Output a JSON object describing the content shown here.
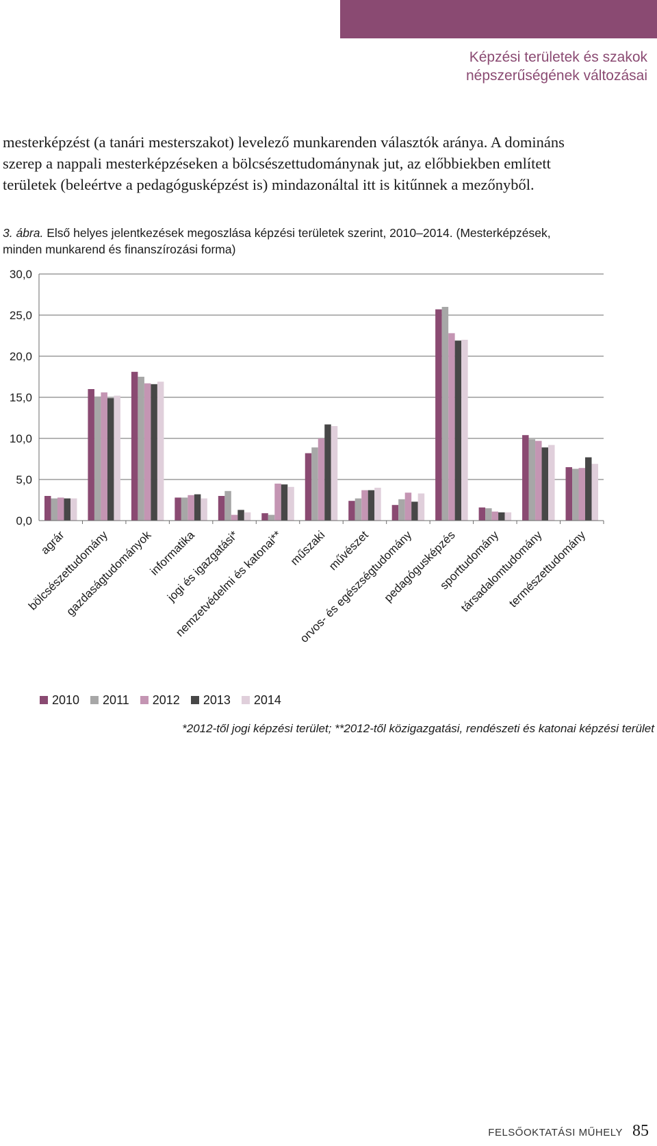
{
  "header": {
    "running_title_line1": "Képzési területek és szakok",
    "running_title_line2": "népszerűségének változásai",
    "bar_color": "#8a4a72"
  },
  "body_text": {
    "lines": [
      "mesterképzést (a tanári mesterszakot) levelező munkarenden választók aránya. A domináns",
      "szerep a nappali mesterképzéseken a bölcsészettudománynak jut, az előbbiekben említett",
      "területek (beleértve a pedagógusképzést is) mindazonáltal itt is kitűnnek a mezőnyből."
    ]
  },
  "figure": {
    "number": "3. ábra.",
    "caption_line1": "Első helyes jelentkezések megoszlása képzési területek szerint, 2010–2014. (Mesterképzések,",
    "caption_line2": "minden munkarend és finanszírozási forma)",
    "footnote": "*2012-től jogi képzési terület; **2012-től közigazgatási, rendészeti és katonai képzési terület"
  },
  "chart_data": {
    "type": "bar",
    "categories": [
      "agrár",
      "bölcsészettudomány",
      "gazdaságtudományok",
      "informatika",
      "jogi és igazgatási*",
      "nemzetvédelmi és katonai**",
      "műszaki",
      "művészet",
      "orvos- és egészségtudomány",
      "pedagógusképzés",
      "sporttudomány",
      "társadalomtudomány",
      "természettudomány"
    ],
    "series": [
      {
        "name": "2010",
        "color": "#8a4a72",
        "values": [
          3.0,
          16.0,
          18.1,
          2.8,
          3.0,
          0.9,
          8.2,
          2.4,
          1.9,
          25.7,
          1.6,
          10.4,
          6.5
        ]
      },
      {
        "name": "2011",
        "color": "#a7a7a7",
        "values": [
          2.7,
          15.1,
          17.5,
          2.8,
          3.6,
          0.7,
          8.9,
          2.7,
          2.6,
          26.0,
          1.5,
          9.9,
          6.3
        ]
      },
      {
        "name": "2012",
        "color": "#c495b3",
        "values": [
          2.8,
          15.6,
          16.7,
          3.1,
          0.7,
          4.5,
          10.0,
          3.7,
          3.4,
          22.8,
          1.1,
          9.7,
          6.4
        ]
      },
      {
        "name": "2013",
        "color": "#474747",
        "values": [
          2.7,
          14.9,
          16.6,
          3.2,
          1.3,
          4.4,
          11.7,
          3.7,
          2.3,
          21.9,
          1.0,
          8.9,
          7.7
        ]
      },
      {
        "name": "2014",
        "color": "#e0cfdb",
        "values": [
          2.7,
          15.2,
          16.9,
          2.7,
          1.0,
          4.1,
          11.5,
          4.0,
          3.3,
          22.0,
          1.0,
          9.2,
          6.9
        ]
      }
    ],
    "yticks": [
      "0,0",
      "5,0",
      "10,0",
      "15,0",
      "20,0",
      "25,0",
      "30,0"
    ],
    "ylim": [
      0,
      30
    ],
    "grid": true,
    "legend_position": "bottom-left"
  },
  "footer": {
    "journal": "FELSŐOKTATÁSI MŰHELY",
    "page_number": "85"
  }
}
